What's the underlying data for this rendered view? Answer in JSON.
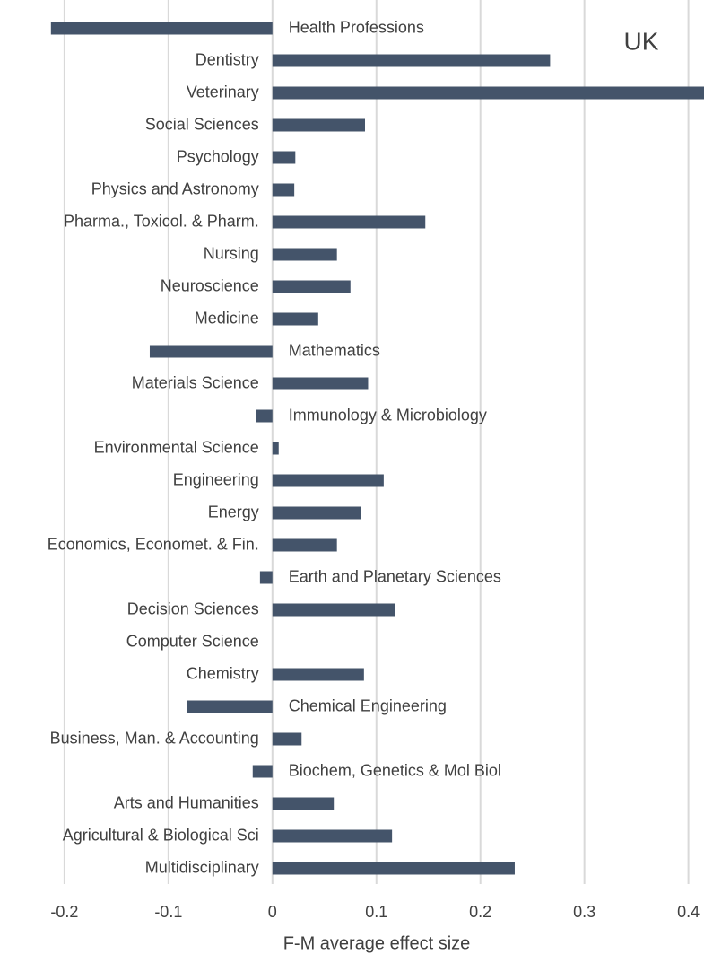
{
  "chart_data": {
    "type": "barh",
    "annotation": "UK",
    "x_label": "F-M average effect size",
    "categories": [
      "Health Professions",
      "Dentistry",
      "Veterinary",
      "Social Sciences",
      "Psychology",
      "Physics and Astronomy",
      "Pharma., Toxicol. & Pharm.",
      "Nursing",
      "Neuroscience",
      "Medicine",
      "Mathematics",
      "Materials Science",
      "Immunology & Microbiology",
      "Environmental Science",
      "Engineering",
      "Energy",
      "Economics, Economet. & Fin.",
      "Earth and Planetary Sciences",
      "Decision Sciences",
      "Computer Science",
      "Chemistry",
      "Chemical Engineering",
      "Business, Man. & Accounting",
      "Biochem, Genetics & Mol Biol",
      "Arts and Humanities",
      "Agricultural & Biological Sci",
      "Multidisciplinary"
    ],
    "values": [
      -0.213,
      0.267,
      0.415,
      0.089,
      0.022,
      0.021,
      0.147,
      0.062,
      0.075,
      0.044,
      -0.118,
      0.092,
      -0.016,
      0.006,
      0.107,
      0.085,
      0.062,
      -0.012,
      0.118,
      0,
      0.088,
      -0.082,
      0.028,
      -0.019,
      0.059,
      0.115,
      0.233
    ],
    "color": "#44546a",
    "xlim": [
      -0.262,
      0.415
    ],
    "xticks": [
      -0.2,
      -0.1,
      0,
      0.1,
      0.2,
      0.3,
      0.4
    ],
    "grid": true
  }
}
